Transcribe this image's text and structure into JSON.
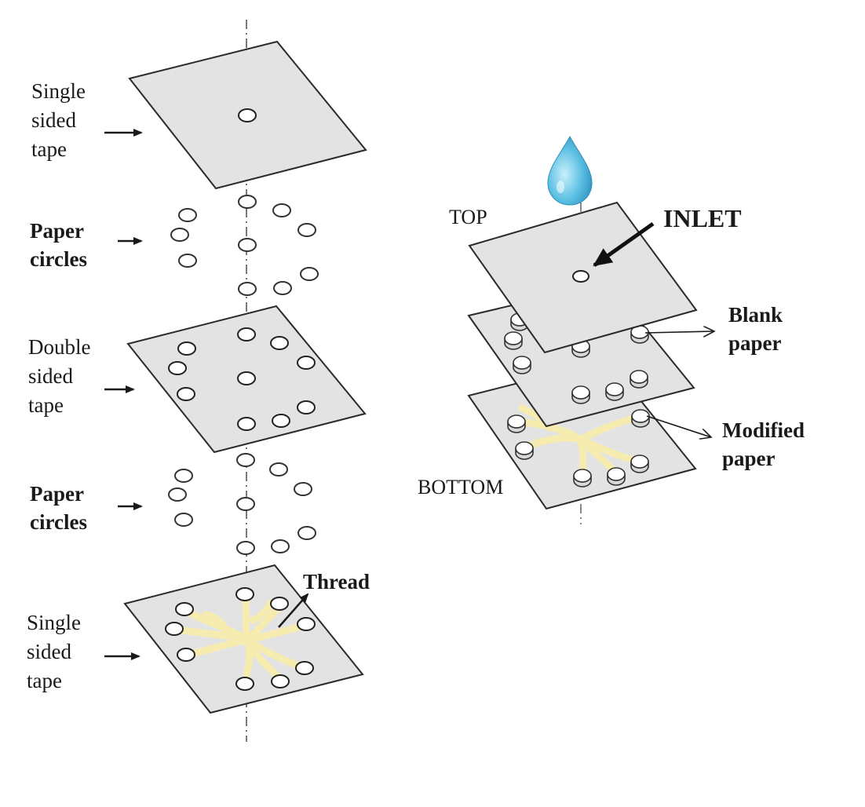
{
  "left_stack": {
    "layer1": {
      "line1": "Single",
      "line2": "sided",
      "line3": "tape"
    },
    "layer2": {
      "line1": "Paper",
      "line2": "circles"
    },
    "layer3": {
      "line1": "Double",
      "line2": "sided",
      "line3": "tape"
    },
    "layer4": {
      "line1": "Paper",
      "line2": "circles"
    },
    "layer5": {
      "line1": "Single",
      "line2": "sided",
      "line3": "tape"
    },
    "thread_label": "Thread"
  },
  "right_stack": {
    "top_label": "TOP",
    "inlet_label": "INLET",
    "blank_paper": {
      "line1": "Blank",
      "line2": "paper"
    },
    "modified_paper": {
      "line1": "Modified",
      "line2": "paper"
    },
    "bottom_label": "BOTTOM"
  },
  "colors": {
    "sheet_fill": "#e3e3e3",
    "sheet_stroke": "#2a2a2a",
    "thread": "#f6ecb0",
    "drop": "#4fb6dc",
    "axis": "#777777"
  }
}
